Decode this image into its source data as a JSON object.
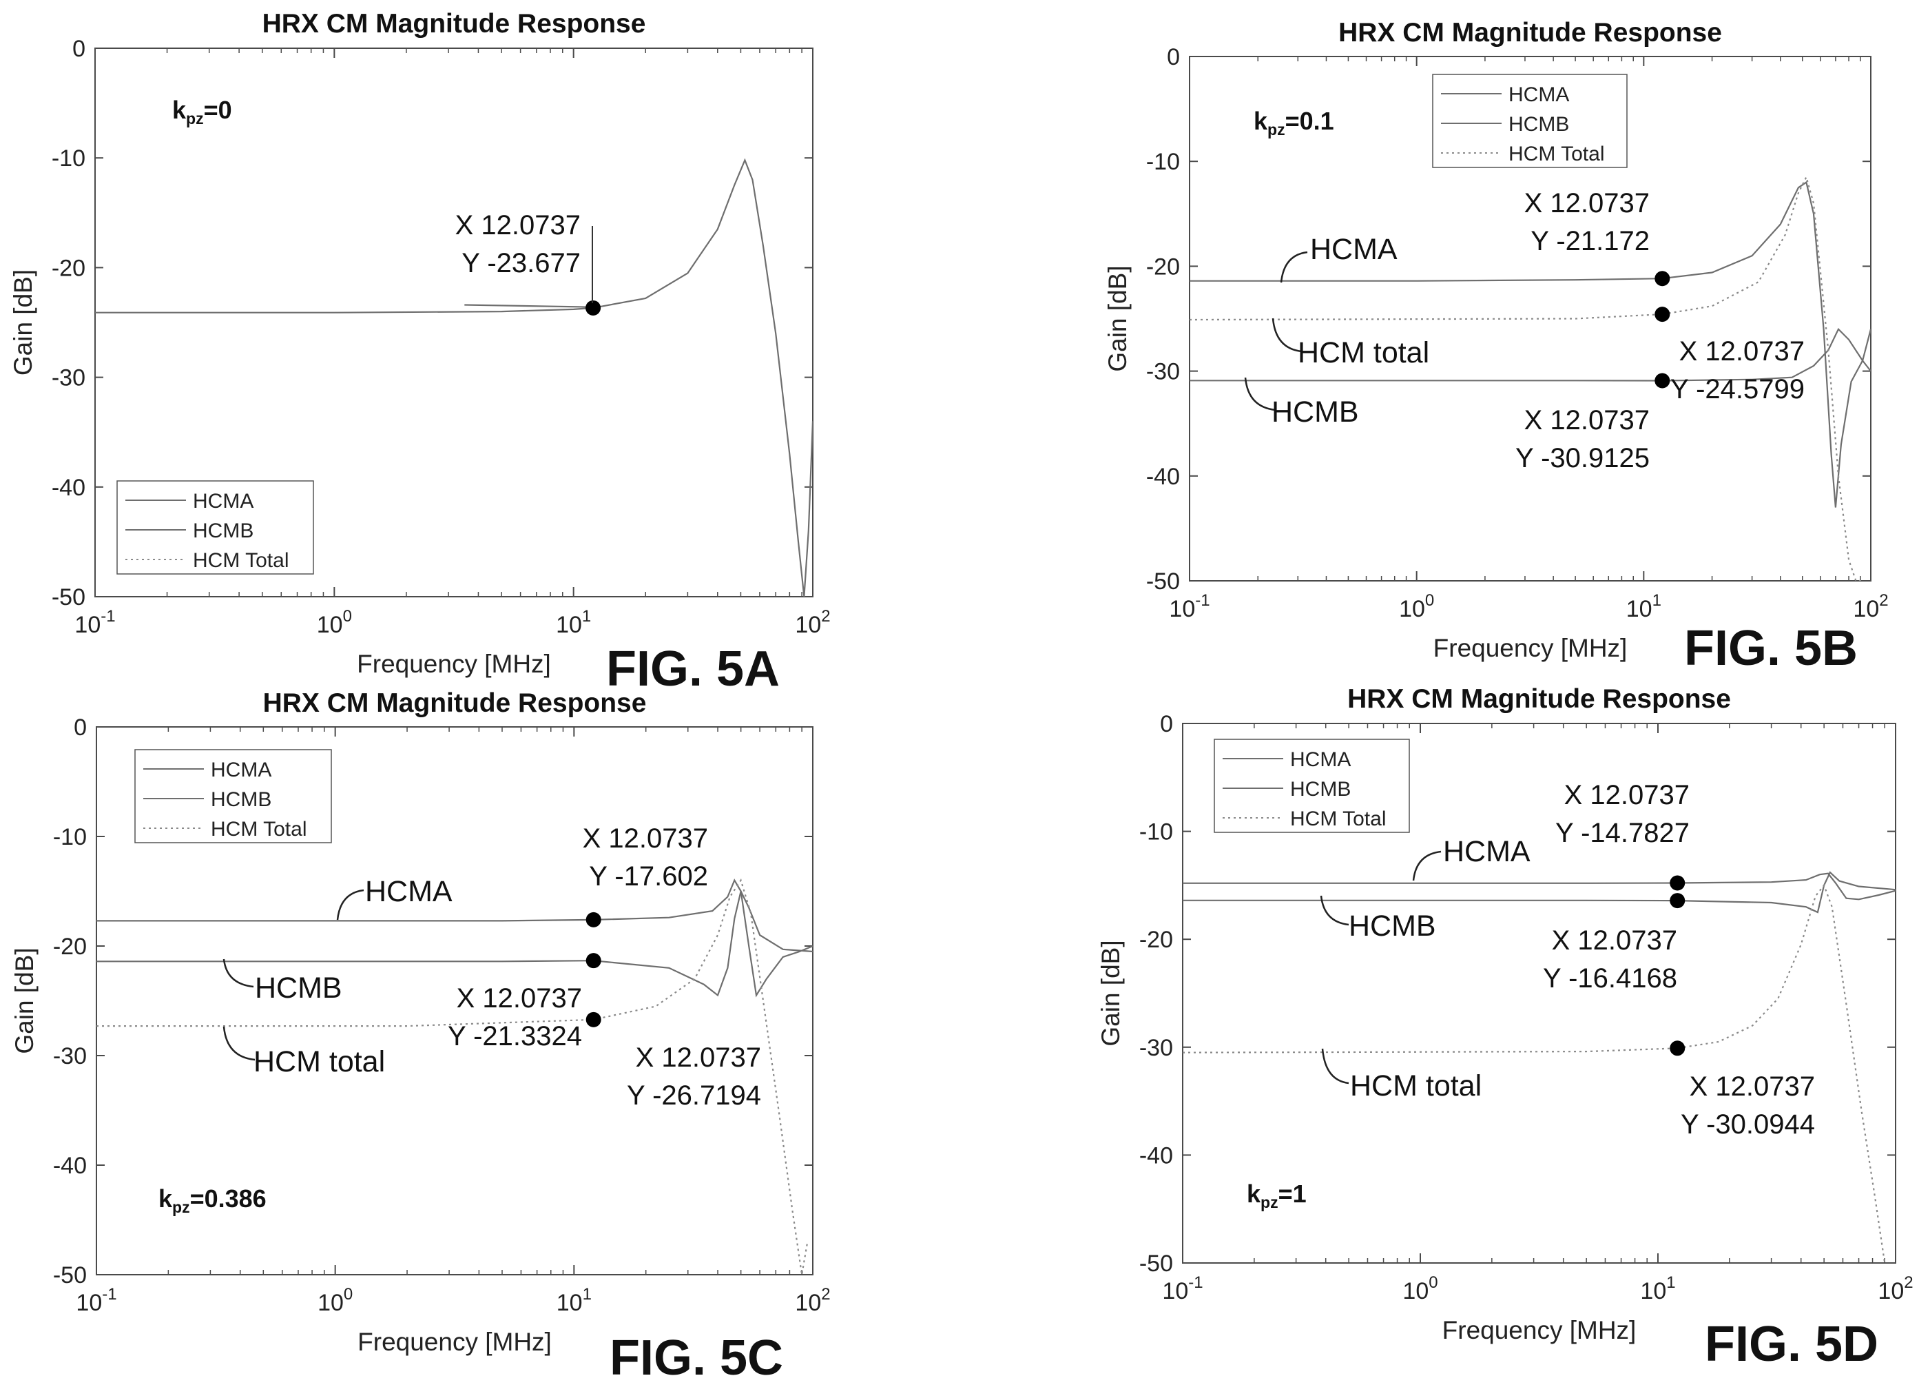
{
  "chart_data": [
    {
      "id": "5A",
      "type": "line",
      "title": "HRX CM Magnitude Response",
      "xlabel": "Frequency [MHz]",
      "ylabel": "Gain [dB]",
      "xscale": "log",
      "xlim": [
        0.1,
        100
      ],
      "ylim": [
        -50,
        0
      ],
      "yticks": [
        0,
        -10,
        -20,
        -30,
        -40,
        -50
      ],
      "grid": false,
      "figure_label": "FIG. 5A",
      "kpz_value": "=0",
      "legend": {
        "placement": "bottom-left",
        "entries": [
          "HCMA",
          "HCMB",
          "HCM Total"
        ]
      },
      "markers": [
        {
          "x": 12.0737,
          "y": -23.677,
          "line1": "X 12.0737",
          "line2": "Y -23.677"
        }
      ],
      "curve_labels": [],
      "series": [
        {
          "name": "HCMA",
          "points": [
            [
              0.1,
              -24.1
            ],
            [
              1,
              -24.1
            ],
            [
              5,
              -24.0
            ],
            [
              10,
              -23.8
            ],
            [
              12.07,
              -23.677
            ],
            [
              20,
              -22.8
            ],
            [
              30,
              -20.5
            ],
            [
              40,
              -16.5
            ],
            [
              47,
              -12.5
            ],
            [
              52,
              -10.2
            ],
            [
              56,
              -12
            ],
            [
              62,
              -18
            ],
            [
              70,
              -26
            ],
            [
              80,
              -37
            ],
            [
              87,
              -45
            ],
            [
              92,
              -50
            ],
            [
              96,
              -44
            ],
            [
              100,
              -34
            ]
          ]
        },
        {
          "name": "HCMB",
          "points": [
            [
              3.5,
              -23.4
            ],
            [
              12.07,
              -23.6
            ]
          ]
        }
      ]
    },
    {
      "id": "5B",
      "type": "line",
      "title": "HRX CM Magnitude Response",
      "xlabel": "Frequency [MHz]",
      "ylabel": "Gain [dB]",
      "xscale": "log",
      "xlim": [
        0.1,
        100
      ],
      "ylim": [
        -50,
        0
      ],
      "yticks": [
        0,
        -10,
        -20,
        -30,
        -40,
        -50
      ],
      "grid": false,
      "figure_label": "FIG. 5B",
      "kpz_value": "=0.1",
      "legend": {
        "placement": "top-right",
        "entries": [
          "HCMA",
          "HCMB",
          "HCM Total"
        ]
      },
      "markers": [
        {
          "x": 12.0737,
          "y": -21.172,
          "line1": "X 12.0737",
          "line2": "Y -21.172"
        },
        {
          "x": 12.0737,
          "y": -24.5799,
          "line1": "X 12.0737",
          "line2": "Y -24.5799"
        },
        {
          "x": 12.0737,
          "y": -30.9125,
          "line1": "X 12.0737",
          "line2": "Y -30.9125"
        }
      ],
      "curve_labels": [
        "HCMA",
        "HCM total",
        "HCMB"
      ],
      "series": [
        {
          "name": "HCMA",
          "points": [
            [
              0.1,
              -21.4
            ],
            [
              1,
              -21.4
            ],
            [
              5,
              -21.3
            ],
            [
              12.07,
              -21.172
            ],
            [
              20,
              -20.6
            ],
            [
              30,
              -19
            ],
            [
              40,
              -16
            ],
            [
              48,
              -12.5
            ],
            [
              52,
              -12
            ],
            [
              56,
              -15
            ],
            [
              62,
              -26
            ],
            [
              67,
              -38
            ],
            [
              70,
              -43
            ],
            [
              74,
              -37
            ],
            [
              82,
              -31
            ],
            [
              92,
              -29
            ],
            [
              100,
              -26
            ]
          ]
        },
        {
          "name": "HCMB",
          "points": [
            [
              0.1,
              -30.9
            ],
            [
              5,
              -30.9
            ],
            [
              12.07,
              -30.9125
            ],
            [
              30,
              -30.8
            ],
            [
              45,
              -30.6
            ],
            [
              56,
              -29.5
            ],
            [
              65,
              -28
            ],
            [
              72,
              -26
            ],
            [
              80,
              -27
            ],
            [
              92,
              -29
            ],
            [
              100,
              -30
            ]
          ]
        },
        {
          "name": "HCM Total",
          "points": [
            [
              0.1,
              -25.1
            ],
            [
              5,
              -25.0
            ],
            [
              12.07,
              -24.5799
            ],
            [
              20,
              -23.8
            ],
            [
              32,
              -21.5
            ],
            [
              42,
              -17
            ],
            [
              48,
              -13
            ],
            [
              52,
              -11.5
            ],
            [
              56,
              -14
            ],
            [
              65,
              -28
            ],
            [
              72,
              -40
            ],
            [
              80,
              -48
            ],
            [
              86,
              -50
            ],
            [
              92,
              -50
            ]
          ]
        }
      ]
    },
    {
      "id": "5C",
      "type": "line",
      "title": "HRX CM Magnitude Response",
      "xlabel": "Frequency [MHz]",
      "ylabel": "Gain [dB]",
      "xscale": "log",
      "xlim": [
        0.1,
        100
      ],
      "ylim": [
        -50,
        0
      ],
      "yticks": [
        0,
        -10,
        -20,
        -30,
        -40,
        -50
      ],
      "grid": false,
      "figure_label": "FIG. 5C",
      "kpz_value": "=0.386",
      "legend": {
        "placement": "top-left",
        "entries": [
          "HCMA",
          "HCMB",
          "HCM Total"
        ]
      },
      "markers": [
        {
          "x": 12.0737,
          "y": -17.602,
          "line1": "X 12.0737",
          "line2": "Y -17.602"
        },
        {
          "x": 12.0737,
          "y": -21.3324,
          "line1": "X 12.0737",
          "line2": "Y -21.3324"
        },
        {
          "x": 12.0737,
          "y": -26.7194,
          "line1": "X 12.0737",
          "line2": "Y -26.7194"
        }
      ],
      "curve_labels": [
        "HCMA",
        "HCMB",
        "HCM total"
      ],
      "series": [
        {
          "name": "HCMA",
          "points": [
            [
              0.1,
              -17.7
            ],
            [
              5,
              -17.7
            ],
            [
              12.07,
              -17.602
            ],
            [
              25,
              -17.4
            ],
            [
              38,
              -16.8
            ],
            [
              44,
              -15.5
            ],
            [
              47,
              -14
            ],
            [
              50,
              -15
            ],
            [
              54,
              -20
            ],
            [
              58,
              -24.5
            ],
            [
              64,
              -23
            ],
            [
              75,
              -21
            ],
            [
              88,
              -20.5
            ],
            [
              100,
              -20
            ]
          ]
        },
        {
          "name": "HCMB",
          "points": [
            [
              0.1,
              -21.4
            ],
            [
              5,
              -21.4
            ],
            [
              12.07,
              -21.3324
            ],
            [
              25,
              -22
            ],
            [
              35,
              -23.5
            ],
            [
              40,
              -24.5
            ],
            [
              44,
              -22
            ],
            [
              47,
              -17.5
            ],
            [
              50,
              -15
            ],
            [
              54,
              -16.5
            ],
            [
              60,
              -19
            ],
            [
              75,
              -20.3
            ],
            [
              100,
              -20.5
            ]
          ]
        },
        {
          "name": "HCM Total",
          "points": [
            [
              0.1,
              -27.3
            ],
            [
              2,
              -27.3
            ],
            [
              12.07,
              -26.7194
            ],
            [
              22,
              -25.5
            ],
            [
              32,
              -23
            ],
            [
              40,
              -19
            ],
            [
              45,
              -15.5
            ],
            [
              50,
              -14
            ],
            [
              55,
              -17
            ],
            [
              62,
              -25
            ],
            [
              72,
              -35
            ],
            [
              82,
              -44
            ],
            [
              90,
              -50
            ],
            [
              95,
              -47
            ]
          ]
        }
      ]
    },
    {
      "id": "5D",
      "type": "line",
      "title": "HRX CM Magnitude Response",
      "xlabel": "Frequency [MHz]",
      "ylabel": "Gain [dB]",
      "xscale": "log",
      "xlim": [
        0.1,
        100
      ],
      "ylim": [
        -50,
        0
      ],
      "yticks": [
        0,
        -10,
        -20,
        -30,
        -40,
        -50
      ],
      "grid": false,
      "figure_label": "FIG. 5D",
      "kpz_value": "=1",
      "legend": {
        "placement": "top-left",
        "entries": [
          "HCMA",
          "HCMB",
          "HCM Total"
        ]
      },
      "markers": [
        {
          "x": 12.0737,
          "y": -14.7827,
          "line1": "X 12.0737",
          "line2": "Y -14.7827"
        },
        {
          "x": 12.0737,
          "y": -16.4168,
          "line1": "X 12.0737",
          "line2": "Y -16.4168"
        },
        {
          "x": 12.0737,
          "y": -30.0944,
          "line1": "X 12.0737",
          "line2": "Y -30.0944"
        }
      ],
      "curve_labels": [
        "HCMA",
        "HCMB",
        "HCM total"
      ],
      "series": [
        {
          "name": "HCMA",
          "points": [
            [
              0.1,
              -14.8
            ],
            [
              5,
              -14.8
            ],
            [
              12.07,
              -14.7827
            ],
            [
              30,
              -14.7
            ],
            [
              42,
              -14.5
            ],
            [
              48,
              -14
            ],
            [
              52,
              -13.9
            ],
            [
              56,
              -14.8
            ],
            [
              62,
              -16.2
            ],
            [
              70,
              -16.3
            ],
            [
              85,
              -15.9
            ],
            [
              100,
              -15.5
            ]
          ]
        },
        {
          "name": "HCMB",
          "points": [
            [
              0.1,
              -16.4
            ],
            [
              5,
              -16.4
            ],
            [
              12.07,
              -16.4168
            ],
            [
              30,
              -16.6
            ],
            [
              42,
              -17
            ],
            [
              47,
              -17.5
            ],
            [
              50,
              -15
            ],
            [
              53,
              -13.8
            ],
            [
              58,
              -14.6
            ],
            [
              70,
              -15.1
            ],
            [
              100,
              -15.4
            ]
          ]
        },
        {
          "name": "HCM Total",
          "points": [
            [
              0.1,
              -30.5
            ],
            [
              5,
              -30.4
            ],
            [
              12.07,
              -30.0944
            ],
            [
              18,
              -29.5
            ],
            [
              25,
              -28
            ],
            [
              32,
              -25.5
            ],
            [
              40,
              -20.5
            ],
            [
              46,
              -16
            ],
            [
              50,
              -15
            ],
            [
              54,
              -17
            ],
            [
              62,
              -26
            ],
            [
              72,
              -36
            ],
            [
              82,
              -44
            ],
            [
              90,
              -50
            ]
          ]
        }
      ]
    }
  ],
  "axis_label_x": "Frequency [MHz]",
  "axis_label_y": "Gain [dB]",
  "x_tick_base": "10",
  "x_tick_exponents": [
    "-1",
    "0",
    "1",
    "2"
  ],
  "y_tick_labels": [
    "0",
    "-10",
    "-20",
    "-30",
    "-40",
    "-50"
  ],
  "kpz_main": "k",
  "kpz_sub": "pz",
  "colors": {
    "HCMA": "#6e6e6e",
    "HCMB": "#6e6e6e",
    "HCM Total": "#8a8a8a",
    "axes": "#4a4a4a",
    "marker": "#000000"
  }
}
